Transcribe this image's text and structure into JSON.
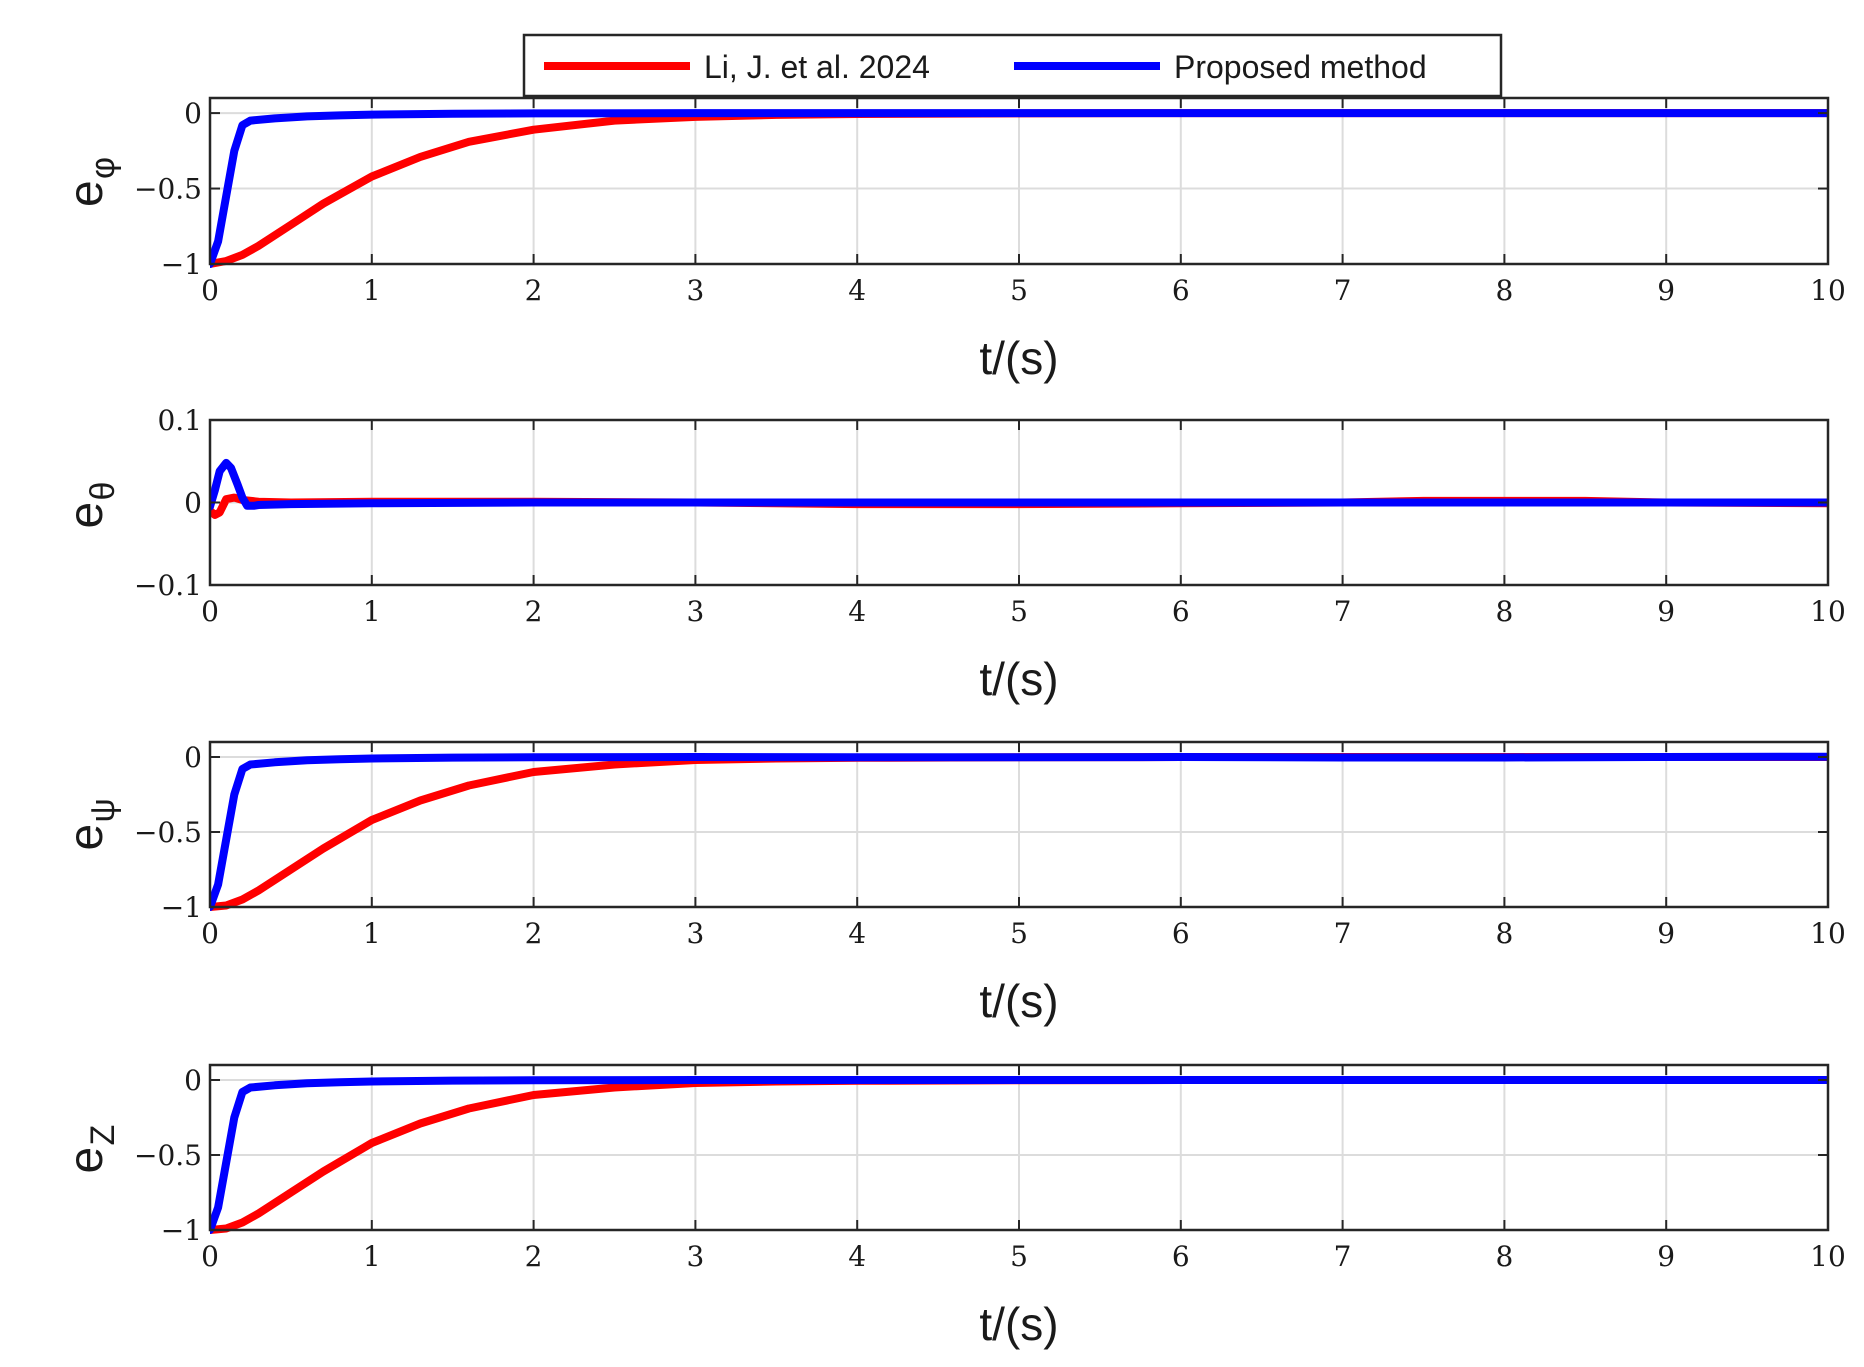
{
  "colors": {
    "series_1": "#ff0000",
    "series_2": "#0000ff"
  },
  "legend": {
    "placement": "top-center",
    "entries": [
      "Li, J. et al. 2024",
      "Proposed method"
    ]
  },
  "chart_data": [
    {
      "type": "line",
      "ylabel_main": "e",
      "ylabel_sub": "φ",
      "xlabel": "t/(s)",
      "xlim": [
        0,
        10
      ],
      "ylim": [
        -1,
        0.1
      ],
      "xticks": [
        0,
        1,
        2,
        3,
        4,
        5,
        6,
        7,
        8,
        9,
        10
      ],
      "yticks": [
        -1,
        -0.5,
        0
      ],
      "ytick_labels": [
        "−1",
        "−0.5",
        "0"
      ],
      "grid": true,
      "series": [
        {
          "name": "Li, J. et al. 2024",
          "x": [
            0,
            0.1,
            0.2,
            0.3,
            0.5,
            0.7,
            1.0,
            1.3,
            1.6,
            2.0,
            2.5,
            3.0,
            3.5,
            4.0,
            5.0,
            6.0,
            7.0,
            8.0,
            9.0,
            10.0
          ],
          "y": [
            -1.0,
            -0.98,
            -0.94,
            -0.88,
            -0.74,
            -0.6,
            -0.42,
            -0.29,
            -0.19,
            -0.11,
            -0.05,
            -0.025,
            -0.012,
            -0.006,
            -0.002,
            0,
            0,
            0,
            0,
            0
          ]
        },
        {
          "name": "Proposed method",
          "x": [
            0,
            0.05,
            0.1,
            0.15,
            0.2,
            0.25,
            0.4,
            0.6,
            0.8,
            1.0,
            1.5,
            2.0,
            3.0,
            4.0,
            5.0,
            6.0,
            7.0,
            8.0,
            9.0,
            10.0
          ],
          "y": [
            -1.0,
            -0.85,
            -0.55,
            -0.25,
            -0.08,
            -0.05,
            -0.035,
            -0.022,
            -0.015,
            -0.01,
            -0.004,
            -0.002,
            0,
            0,
            0,
            0,
            0,
            0,
            0,
            0
          ]
        }
      ]
    },
    {
      "type": "line",
      "ylabel_main": "e",
      "ylabel_sub": "θ",
      "xlabel": "t/(s)",
      "xlim": [
        0,
        10
      ],
      "ylim": [
        -0.1,
        0.1
      ],
      "xticks": [
        0,
        1,
        2,
        3,
        4,
        5,
        6,
        7,
        8,
        9,
        10
      ],
      "yticks": [
        -0.1,
        0,
        0.1
      ],
      "ytick_labels": [
        "−0.1",
        "0",
        "0.1"
      ],
      "grid": true,
      "series": [
        {
          "name": "Li, J. et al. 2024",
          "x": [
            0,
            0.03,
            0.06,
            0.1,
            0.15,
            0.2,
            0.3,
            0.5,
            1.0,
            2.0,
            3.0,
            4.0,
            5.0,
            6.0,
            7.0,
            7.5,
            8.0,
            8.5,
            9.0,
            10.0
          ],
          "y": [
            -0.01,
            -0.015,
            -0.012,
            0.004,
            0.006,
            0.003,
            0.001,
            0,
            0.001,
            0.001,
            0,
            -0.002,
            -0.002,
            -0.001,
            0,
            0.002,
            0.002,
            0.002,
            0,
            -0.001
          ]
        },
        {
          "name": "Proposed method",
          "x": [
            0,
            0.03,
            0.06,
            0.1,
            0.13,
            0.17,
            0.2,
            0.23,
            0.27,
            0.3,
            0.5,
            1.0,
            2.0,
            3.0,
            4.0,
            5.0,
            6.0,
            7.0,
            8.0,
            9.0,
            10.0
          ],
          "y": [
            -0.005,
            0.015,
            0.038,
            0.048,
            0.042,
            0.022,
            0.006,
            -0.004,
            -0.004,
            -0.003,
            -0.002,
            -0.001,
            0,
            0,
            0,
            0,
            0,
            0,
            0,
            0,
            0
          ]
        }
      ]
    },
    {
      "type": "line",
      "ylabel_main": "e",
      "ylabel_sub": "ψ",
      "xlabel": "t/(s)",
      "xlim": [
        0,
        10
      ],
      "ylim": [
        -1,
        0.1
      ],
      "xticks": [
        0,
        1,
        2,
        3,
        4,
        5,
        6,
        7,
        8,
        9,
        10
      ],
      "yticks": [
        -1,
        -0.5,
        0
      ],
      "ytick_labels": [
        "−1",
        "−0.5",
        "0"
      ],
      "grid": true,
      "series": [
        {
          "name": "Li, J. et al. 2024",
          "x": [
            0,
            0.1,
            0.2,
            0.3,
            0.5,
            0.7,
            1.0,
            1.3,
            1.6,
            2.0,
            2.5,
            3.0,
            3.5,
            4.0,
            5.0,
            6.0,
            7.0,
            8.0,
            9.0,
            10.0
          ],
          "y": [
            -1.0,
            -0.99,
            -0.95,
            -0.89,
            -0.75,
            -0.61,
            -0.42,
            -0.29,
            -0.19,
            -0.1,
            -0.05,
            -0.02,
            -0.01,
            -0.005,
            -0.002,
            0,
            0,
            0,
            0,
            0
          ]
        },
        {
          "name": "Proposed method",
          "x": [
            0,
            0.05,
            0.1,
            0.15,
            0.2,
            0.25,
            0.4,
            0.6,
            0.8,
            1.0,
            1.5,
            2.0,
            3.0,
            4.0,
            5.0,
            6.0,
            7.0,
            8.0,
            9.0,
            10.0
          ],
          "y": [
            -1.0,
            -0.85,
            -0.55,
            -0.25,
            -0.08,
            -0.05,
            -0.035,
            -0.022,
            -0.015,
            -0.01,
            -0.004,
            -0.002,
            0,
            -0.002,
            -0.002,
            0,
            -0.003,
            -0.003,
            0,
            0.002
          ]
        }
      ]
    },
    {
      "type": "line",
      "ylabel_main": "e",
      "ylabel_sub": "Z",
      "xlabel": "t/(s)",
      "xlim": [
        0,
        10
      ],
      "ylim": [
        -1,
        0.1
      ],
      "xticks": [
        0,
        1,
        2,
        3,
        4,
        5,
        6,
        7,
        8,
        9,
        10
      ],
      "yticks": [
        -1,
        -0.5,
        0
      ],
      "ytick_labels": [
        "−1",
        "−0.5",
        "0"
      ],
      "grid": true,
      "series": [
        {
          "name": "Li, J. et al. 2024",
          "x": [
            0,
            0.1,
            0.2,
            0.3,
            0.5,
            0.7,
            1.0,
            1.3,
            1.6,
            2.0,
            2.5,
            3.0,
            3.5,
            4.0,
            5.0,
            6.0,
            7.0,
            8.0,
            9.0,
            10.0
          ],
          "y": [
            -1.0,
            -0.99,
            -0.95,
            -0.89,
            -0.75,
            -0.61,
            -0.42,
            -0.29,
            -0.19,
            -0.1,
            -0.05,
            -0.02,
            -0.01,
            -0.005,
            -0.002,
            0,
            0,
            0,
            0,
            0
          ]
        },
        {
          "name": "Proposed method",
          "x": [
            0,
            0.05,
            0.1,
            0.15,
            0.2,
            0.25,
            0.4,
            0.6,
            0.8,
            1.0,
            1.5,
            2.0,
            3.0,
            4.0,
            5.0,
            6.0,
            7.0,
            8.0,
            9.0,
            10.0
          ],
          "y": [
            -1.0,
            -0.85,
            -0.55,
            -0.25,
            -0.08,
            -0.05,
            -0.035,
            -0.022,
            -0.015,
            -0.01,
            -0.004,
            -0.002,
            0,
            0,
            0,
            0,
            0,
            0,
            0,
            0
          ]
        }
      ]
    }
  ]
}
